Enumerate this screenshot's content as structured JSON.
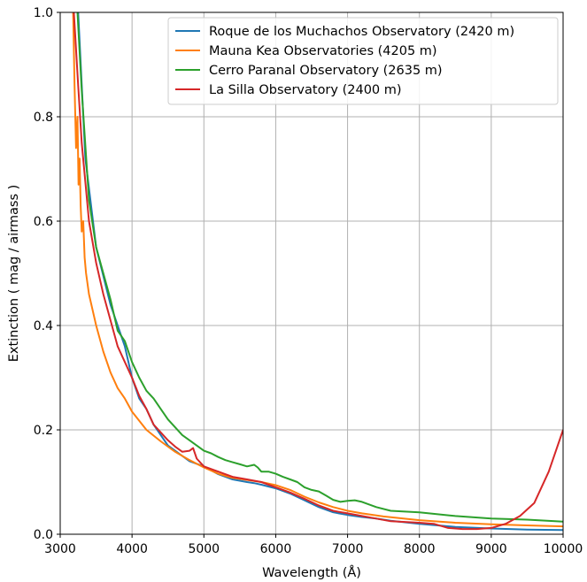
{
  "chart_data": {
    "type": "line",
    "title": "",
    "xlabel": "Wavelength (Å)",
    "ylabel": "Extinction ( mag / airmass )",
    "xlim": [
      3000,
      10000
    ],
    "ylim": [
      0.0,
      1.0
    ],
    "xticks": [
      "3000",
      "4000",
      "5000",
      "6000",
      "7000",
      "8000",
      "9000",
      "10000"
    ],
    "yticks": [
      "0.0",
      "0.2",
      "0.4",
      "0.6",
      "0.8",
      "1.0"
    ],
    "grid": true,
    "legend_position": "top-right",
    "series": [
      {
        "name": "Roque de los Muchachos Observatory (2420 m)",
        "color": "#1f77b4",
        "points": [
          [
            3250,
            1.0
          ],
          [
            3350,
            0.72
          ],
          [
            3500,
            0.55
          ],
          [
            3700,
            0.44
          ],
          [
            3900,
            0.36
          ],
          [
            4000,
            0.3
          ],
          [
            4100,
            0.26
          ],
          [
            4200,
            0.24
          ],
          [
            4300,
            0.21
          ],
          [
            4400,
            0.19
          ],
          [
            4500,
            0.17
          ],
          [
            4600,
            0.16
          ],
          [
            4700,
            0.15
          ],
          [
            4800,
            0.14
          ],
          [
            5000,
            0.13
          ],
          [
            5200,
            0.115
          ],
          [
            5400,
            0.105
          ],
          [
            5600,
            0.1
          ],
          [
            5700,
            0.098
          ],
          [
            5800,
            0.095
          ],
          [
            6000,
            0.088
          ],
          [
            6200,
            0.078
          ],
          [
            6400,
            0.065
          ],
          [
            6600,
            0.052
          ],
          [
            6800,
            0.042
          ],
          [
            7000,
            0.037
          ],
          [
            7200,
            0.033
          ],
          [
            7400,
            0.03
          ],
          [
            7600,
            0.026
          ],
          [
            8000,
            0.02
          ],
          [
            8500,
            0.014
          ],
          [
            9000,
            0.011
          ],
          [
            9500,
            0.009
          ],
          [
            10000,
            0.008
          ]
        ]
      },
      {
        "name": "Mauna Kea Observatories (4205 m)",
        "color": "#ff7f0e",
        "points": [
          [
            3180,
            1.0
          ],
          [
            3200,
            0.86
          ],
          [
            3220,
            0.74
          ],
          [
            3240,
            0.8
          ],
          [
            3255,
            0.67
          ],
          [
            3270,
            0.72
          ],
          [
            3285,
            0.63
          ],
          [
            3300,
            0.58
          ],
          [
            3320,
            0.6
          ],
          [
            3340,
            0.53
          ],
          [
            3360,
            0.5
          ],
          [
            3400,
            0.46
          ],
          [
            3500,
            0.4
          ],
          [
            3600,
            0.35
          ],
          [
            3700,
            0.31
          ],
          [
            3800,
            0.28
          ],
          [
            3900,
            0.26
          ],
          [
            4000,
            0.235
          ],
          [
            4200,
            0.2
          ],
          [
            4400,
            0.178
          ],
          [
            4600,
            0.158
          ],
          [
            4800,
            0.142
          ],
          [
            5000,
            0.128
          ],
          [
            5200,
            0.116
          ],
          [
            5400,
            0.108
          ],
          [
            5600,
            0.104
          ],
          [
            5800,
            0.1
          ],
          [
            6000,
            0.094
          ],
          [
            6200,
            0.085
          ],
          [
            6400,
            0.072
          ],
          [
            6600,
            0.061
          ],
          [
            6800,
            0.052
          ],
          [
            7000,
            0.045
          ],
          [
            7200,
            0.04
          ],
          [
            7500,
            0.034
          ],
          [
            8000,
            0.027
          ],
          [
            8500,
            0.022
          ],
          [
            9000,
            0.019
          ],
          [
            9500,
            0.017
          ],
          [
            10000,
            0.015
          ]
        ]
      },
      {
        "name": "Cerro Paranal Observatory (2635 m)",
        "color": "#2ca02c",
        "points": [
          [
            3240,
            1.0
          ],
          [
            3300,
            0.85
          ],
          [
            3400,
            0.64
          ],
          [
            3500,
            0.55
          ],
          [
            3600,
            0.5
          ],
          [
            3700,
            0.45
          ],
          [
            3800,
            0.39
          ],
          [
            3850,
            0.38
          ],
          [
            3900,
            0.37
          ],
          [
            4000,
            0.33
          ],
          [
            4100,
            0.3
          ],
          [
            4200,
            0.275
          ],
          [
            4300,
            0.26
          ],
          [
            4400,
            0.24
          ],
          [
            4500,
            0.22
          ],
          [
            4600,
            0.205
          ],
          [
            4700,
            0.19
          ],
          [
            4800,
            0.18
          ],
          [
            4900,
            0.17
          ],
          [
            5000,
            0.16
          ],
          [
            5100,
            0.155
          ],
          [
            5200,
            0.148
          ],
          [
            5300,
            0.142
          ],
          [
            5400,
            0.138
          ],
          [
            5500,
            0.134
          ],
          [
            5600,
            0.13
          ],
          [
            5700,
            0.133
          ],
          [
            5750,
            0.128
          ],
          [
            5800,
            0.12
          ],
          [
            5900,
            0.12
          ],
          [
            6000,
            0.116
          ],
          [
            6100,
            0.11
          ],
          [
            6200,
            0.105
          ],
          [
            6300,
            0.1
          ],
          [
            6400,
            0.09
          ],
          [
            6500,
            0.085
          ],
          [
            6600,
            0.082
          ],
          [
            6700,
            0.074
          ],
          [
            6800,
            0.066
          ],
          [
            6900,
            0.062
          ],
          [
            7000,
            0.064
          ],
          [
            7100,
            0.065
          ],
          [
            7200,
            0.062
          ],
          [
            7400,
            0.052
          ],
          [
            7600,
            0.045
          ],
          [
            8000,
            0.042
          ],
          [
            8500,
            0.035
          ],
          [
            9000,
            0.03
          ],
          [
            9500,
            0.028
          ],
          [
            10000,
            0.024
          ]
        ]
      },
      {
        "name": "La Silla Observatory (2400 m)",
        "color": "#d62728",
        "points": [
          [
            3190,
            1.0
          ],
          [
            3250,
            0.86
          ],
          [
            3300,
            0.75
          ],
          [
            3400,
            0.6
          ],
          [
            3500,
            0.52
          ],
          [
            3600,
            0.46
          ],
          [
            3700,
            0.41
          ],
          [
            3800,
            0.36
          ],
          [
            3900,
            0.33
          ],
          [
            4000,
            0.3
          ],
          [
            4100,
            0.265
          ],
          [
            4200,
            0.24
          ],
          [
            4300,
            0.21
          ],
          [
            4400,
            0.195
          ],
          [
            4500,
            0.18
          ],
          [
            4600,
            0.168
          ],
          [
            4700,
            0.158
          ],
          [
            4800,
            0.16
          ],
          [
            4850,
            0.165
          ],
          [
            4900,
            0.145
          ],
          [
            5000,
            0.13
          ],
          [
            5200,
            0.12
          ],
          [
            5400,
            0.11
          ],
          [
            5600,
            0.105
          ],
          [
            5800,
            0.1
          ],
          [
            6000,
            0.09
          ],
          [
            6200,
            0.08
          ],
          [
            6400,
            0.068
          ],
          [
            6600,
            0.055
          ],
          [
            6800,
            0.045
          ],
          [
            7000,
            0.04
          ],
          [
            7200,
            0.035
          ],
          [
            7400,
            0.03
          ],
          [
            7600,
            0.025
          ],
          [
            8000,
            0.022
          ],
          [
            8200,
            0.02
          ],
          [
            8400,
            0.012
          ],
          [
            8600,
            0.01
          ],
          [
            8800,
            0.01
          ],
          [
            9000,
            0.012
          ],
          [
            9200,
            0.02
          ],
          [
            9400,
            0.035
          ],
          [
            9600,
            0.06
          ],
          [
            9800,
            0.12
          ],
          [
            10000,
            0.2
          ]
        ]
      }
    ]
  }
}
